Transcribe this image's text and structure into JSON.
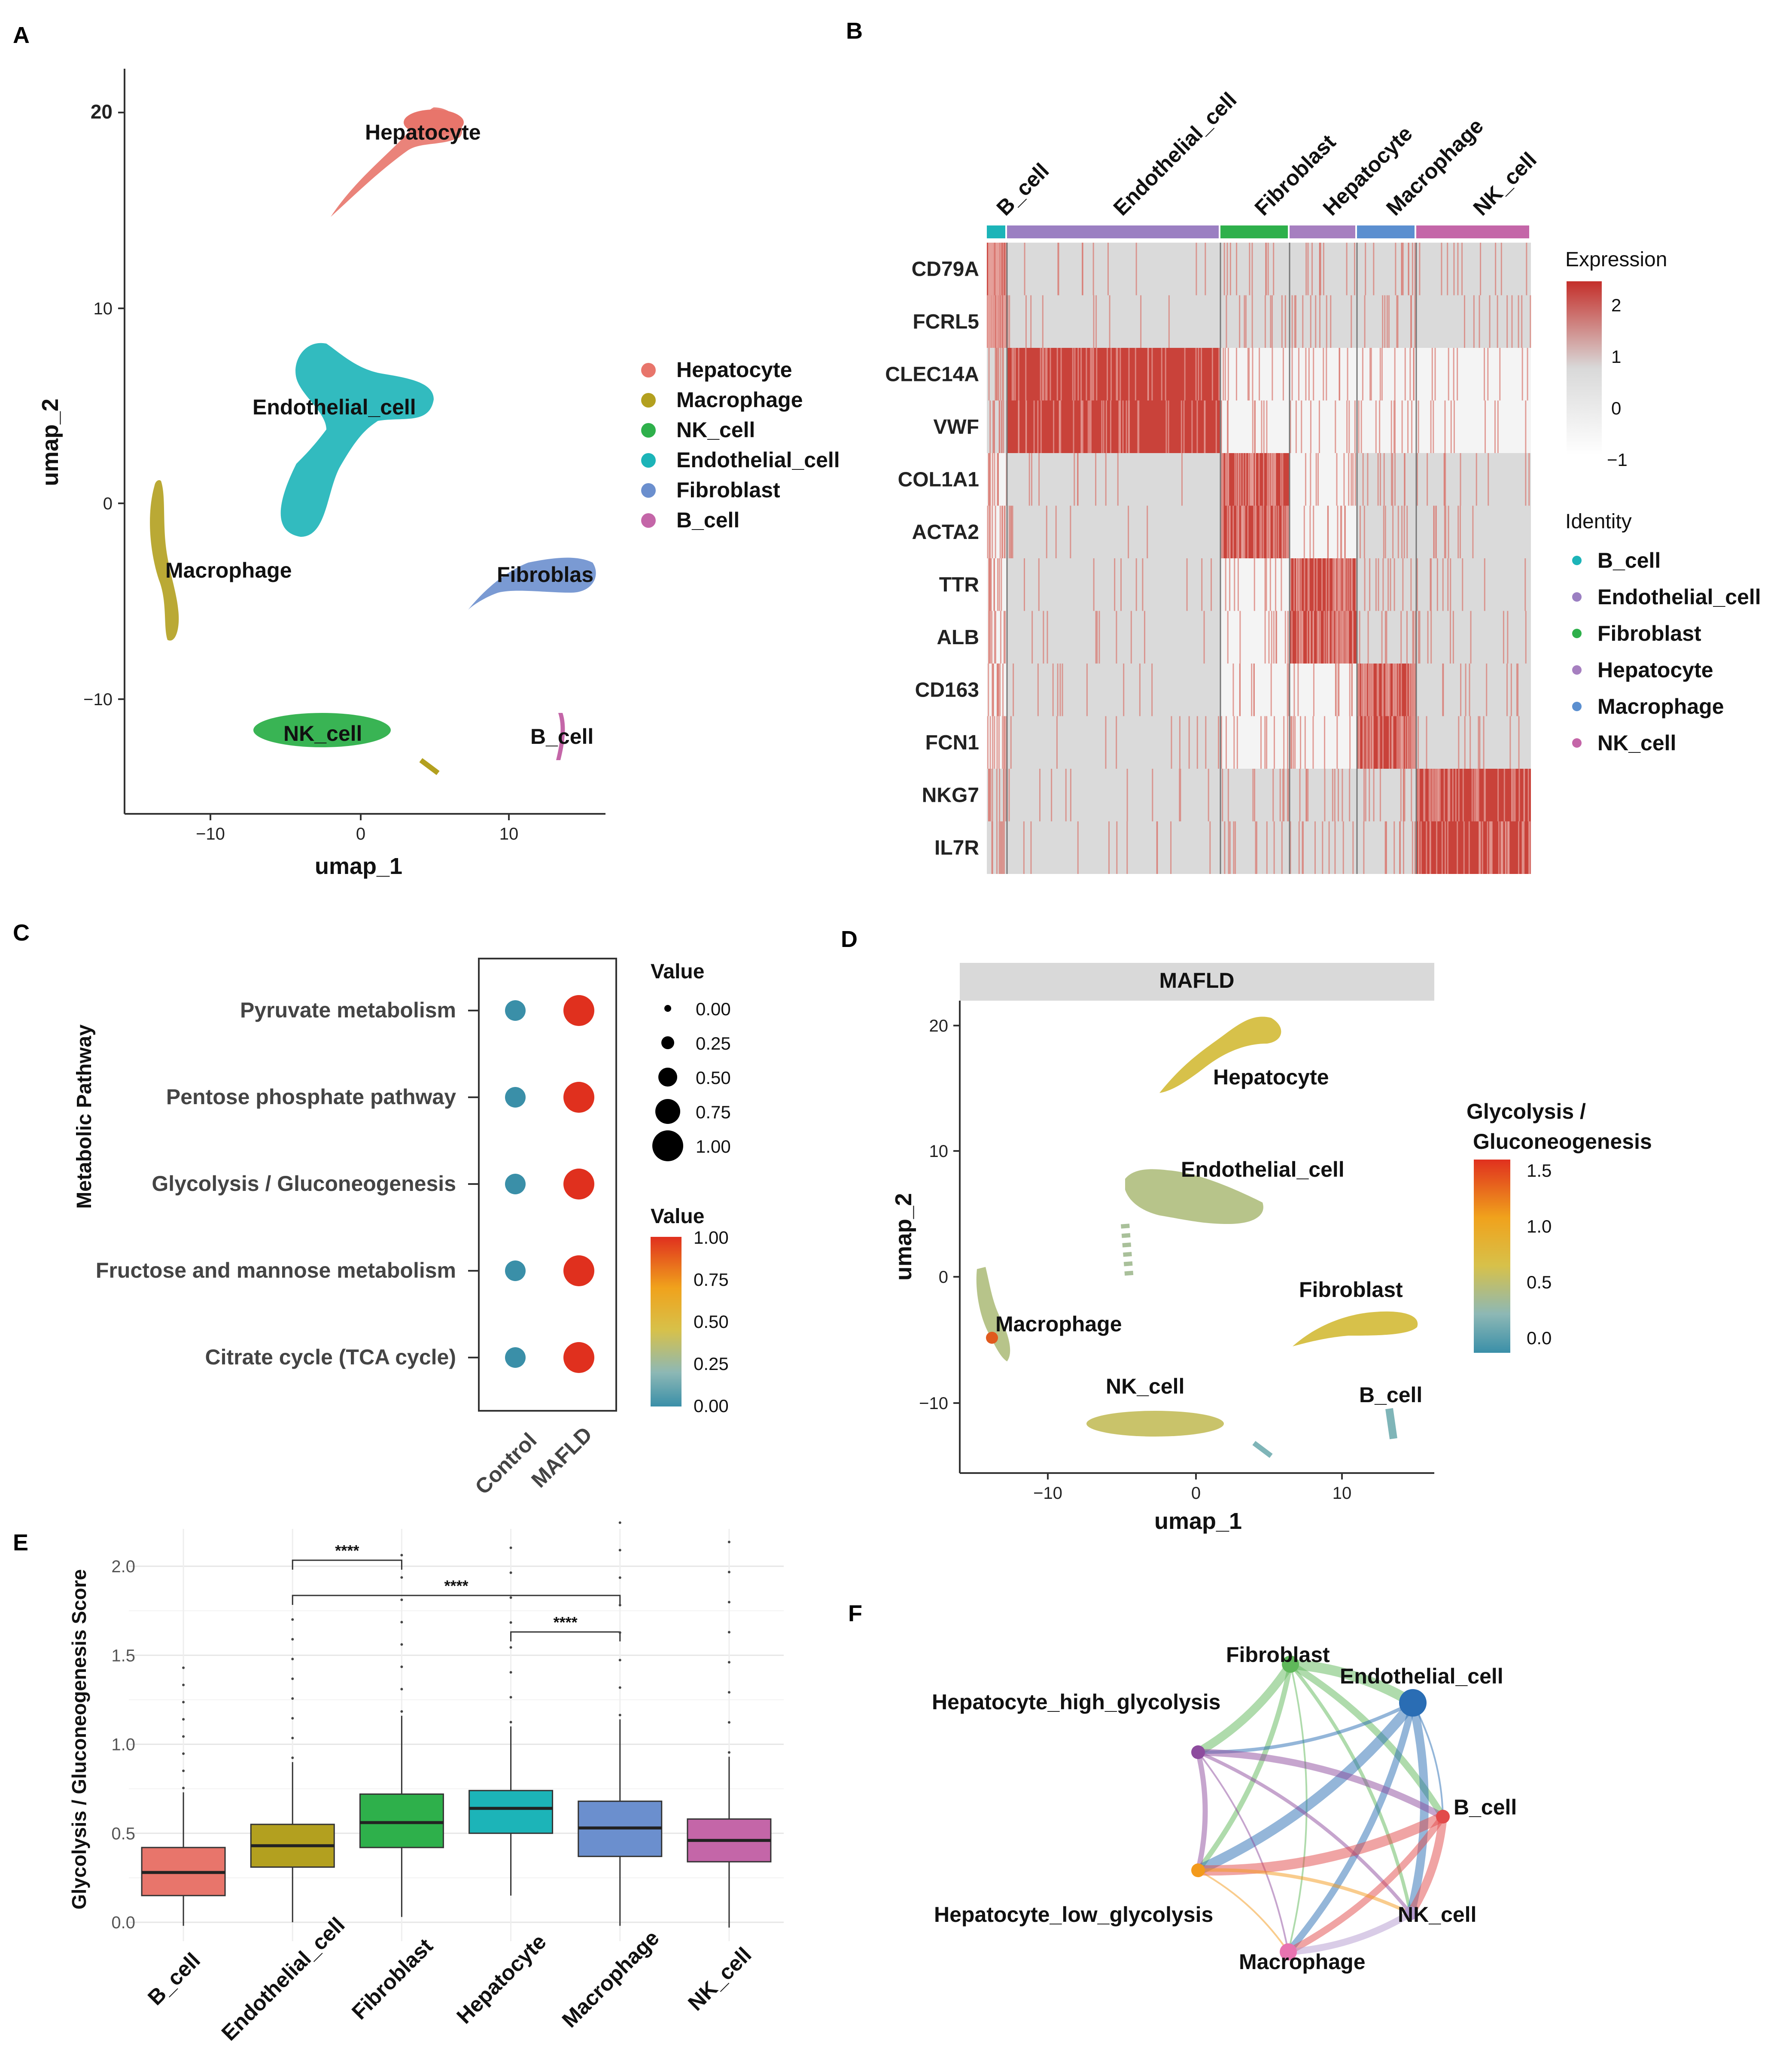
{
  "panels": {
    "a": "A",
    "b": "B",
    "c": "C",
    "d": "D",
    "e": "E",
    "f": "F"
  },
  "colors": {
    "Hepatocyte": "#e8756b",
    "Macrophage": "#b3a01f",
    "NK_cell": "#2eb04b",
    "Endothelial_cell": "#1cb4b8",
    "Fibroblast": "#6b8fce",
    "B_cell": "#c466a8",
    "heat_high": "#c42f2a",
    "heat_mid": "#d9d9d9",
    "heat_low": "#ffffff",
    "dot_control": "#3a8fa8",
    "dot_mafld": "#e0301e"
  },
  "panel_a": {
    "xlabel": "umap_1",
    "ylabel": "umap_2",
    "xticks": [
      "−10",
      "0",
      "10"
    ],
    "yticks": [
      "20",
      "10",
      "0",
      "−10"
    ],
    "clusters": [
      {
        "label": "Hepatocyte",
        "color_key": "Hepatocyte"
      },
      {
        "label": "Endothelial_cell",
        "color_key": "Endothelial_cell"
      },
      {
        "label": "Macrophage",
        "color_key": "Macrophage"
      },
      {
        "label": "Fibroblas",
        "color_key": "Fibroblast"
      },
      {
        "label": "NK_cell",
        "color_key": "NK_cell"
      },
      {
        "label": "B_cell",
        "color_key": "B_cell"
      }
    ],
    "legend": [
      "Hepatocyte",
      "Macrophage",
      "NK_cell",
      "Endothelial_cell",
      "Fibroblast",
      "B_cell"
    ]
  },
  "panel_b": {
    "groups": [
      "B_cell",
      "Endothelial_cell",
      "Fibroblast",
      "Hepatocyte",
      "Macrophage",
      "NK_cell"
    ],
    "genes": [
      "CD79A",
      "FCRL5",
      "CLEC14A",
      "VWF",
      "COL1A1",
      "ACTA2",
      "TTR",
      "ALB",
      "CD163",
      "FCN1",
      "NKG7",
      "IL7R"
    ],
    "expression_title": "Expression",
    "expression_ticks": [
      "2",
      "1",
      "0",
      "−1"
    ],
    "identity_title": "Identity",
    "identity_items": [
      "B_cell",
      "Endothelial_cell",
      "Fibroblast",
      "Hepatocyte",
      "Macrophage",
      "NK_cell"
    ]
  },
  "panel_c": {
    "ylabel": "Metabolic Pathway",
    "pathways": [
      "Pyruvate metabolism",
      "Pentose phosphate pathway",
      "Glycolysis / Gluconeogenesis",
      "Fructose and mannose metabolism",
      "Citrate cycle (TCA cycle)"
    ],
    "groups": [
      "Control",
      "MAFLD"
    ],
    "size_title": "Value",
    "size_ticks": [
      "0.00",
      "0.25",
      "0.50",
      "0.75",
      "1.00"
    ],
    "color_title": "Value",
    "color_ticks": [
      "1.00",
      "0.75",
      "0.50",
      "0.25",
      "0.00"
    ]
  },
  "panel_d": {
    "strip": "MAFLD",
    "xlabel": "umap_1",
    "ylabel": "umap_2",
    "xticks": [
      "−10",
      "0",
      "10"
    ],
    "yticks": [
      "20",
      "10",
      "0",
      "−10"
    ],
    "clusters": [
      "Hepatocyte",
      "Endothelial_cell",
      "Fibroblast",
      "Macrophage",
      "NK_cell",
      "B_cell"
    ],
    "legend_title_1": "Glycolysis /",
    "legend_title_2": "Gluconeogenesis",
    "legend_ticks": [
      "1.5",
      "1.0",
      "0.5",
      "0.0"
    ]
  },
  "chart_data": [
    {
      "type": "boxplot",
      "title": "",
      "ylabel": "Glycolysis / Gluconeogenesis Score",
      "ylim": [
        -0.05,
        2.2
      ],
      "yticks": [
        "2.0",
        "1.5",
        "1.0",
        "0.5",
        "0.0"
      ],
      "categories": [
        "B_cell",
        "Endothelial_cell",
        "Fibroblast",
        "Hepatocyte",
        "Macrophage",
        "NK_cell"
      ],
      "boxes": [
        {
          "name": "B_cell",
          "min": -0.02,
          "q1": 0.15,
          "median": 0.28,
          "q3": 0.42,
          "max": 0.73
        },
        {
          "name": "Endothelial_cell",
          "min": 0.0,
          "q1": 0.31,
          "median": 0.43,
          "q3": 0.55,
          "max": 0.9
        },
        {
          "name": "Fibroblast",
          "min": 0.03,
          "q1": 0.42,
          "median": 0.56,
          "q3": 0.72,
          "max": 1.16
        },
        {
          "name": "Hepatocyte",
          "min": 0.15,
          "q1": 0.5,
          "median": 0.64,
          "q3": 0.74,
          "max": 1.1
        },
        {
          "name": "Macrophage",
          "min": -0.02,
          "q1": 0.37,
          "median": 0.53,
          "q3": 0.68,
          "max": 1.14
        },
        {
          "name": "NK_cell",
          "min": -0.03,
          "q1": 0.34,
          "median": 0.46,
          "q3": 0.58,
          "max": 0.93
        }
      ],
      "significance": [
        {
          "from": "Endothelial_cell",
          "to": "Fibroblast",
          "label": "****"
        },
        {
          "from": "Endothelial_cell",
          "to": "Macrophage",
          "label": "****"
        },
        {
          "from": "Hepatocyte",
          "to": "Macrophage",
          "label": "****"
        }
      ]
    },
    {
      "type": "dotplot",
      "title": "",
      "groups": [
        "Control",
        "MAFLD"
      ],
      "pathways": [
        "Pyruvate metabolism",
        "Pentose phosphate pathway",
        "Glycolysis / Gluconeogenesis",
        "Fructose and mannose metabolism",
        "Citrate cycle (TCA cycle)"
      ],
      "values": {
        "Control": [
          0.5,
          0.5,
          0.5,
          0.5,
          0.5
        ],
        "MAFLD": [
          1.0,
          1.0,
          1.0,
          1.0,
          1.0
        ]
      },
      "color_values": {
        "Control": [
          0.0,
          0.0,
          0.0,
          0.0,
          0.0
        ],
        "MAFLD": [
          1.0,
          1.0,
          1.0,
          1.0,
          1.0
        ]
      }
    }
  ],
  "panel_f": {
    "nodes": [
      "Fibroblast",
      "Endothelial_cell",
      "Hepatocyte_high_glycolysis",
      "B_cell",
      "Hepatocyte_low_glycolysis",
      "NK_cell",
      "Macrophage"
    ],
    "node_colors": {
      "Fibroblast": "#5fb85a",
      "Endothelial_cell": "#2a6db4",
      "Hepatocyte_high_glycolysis": "#8d4c9e",
      "B_cell": "#e24a4a",
      "Hepatocyte_low_glycolysis": "#f39a1c",
      "NK_cell": "#b49ad0",
      "Macrophage": "#e873b0"
    }
  }
}
